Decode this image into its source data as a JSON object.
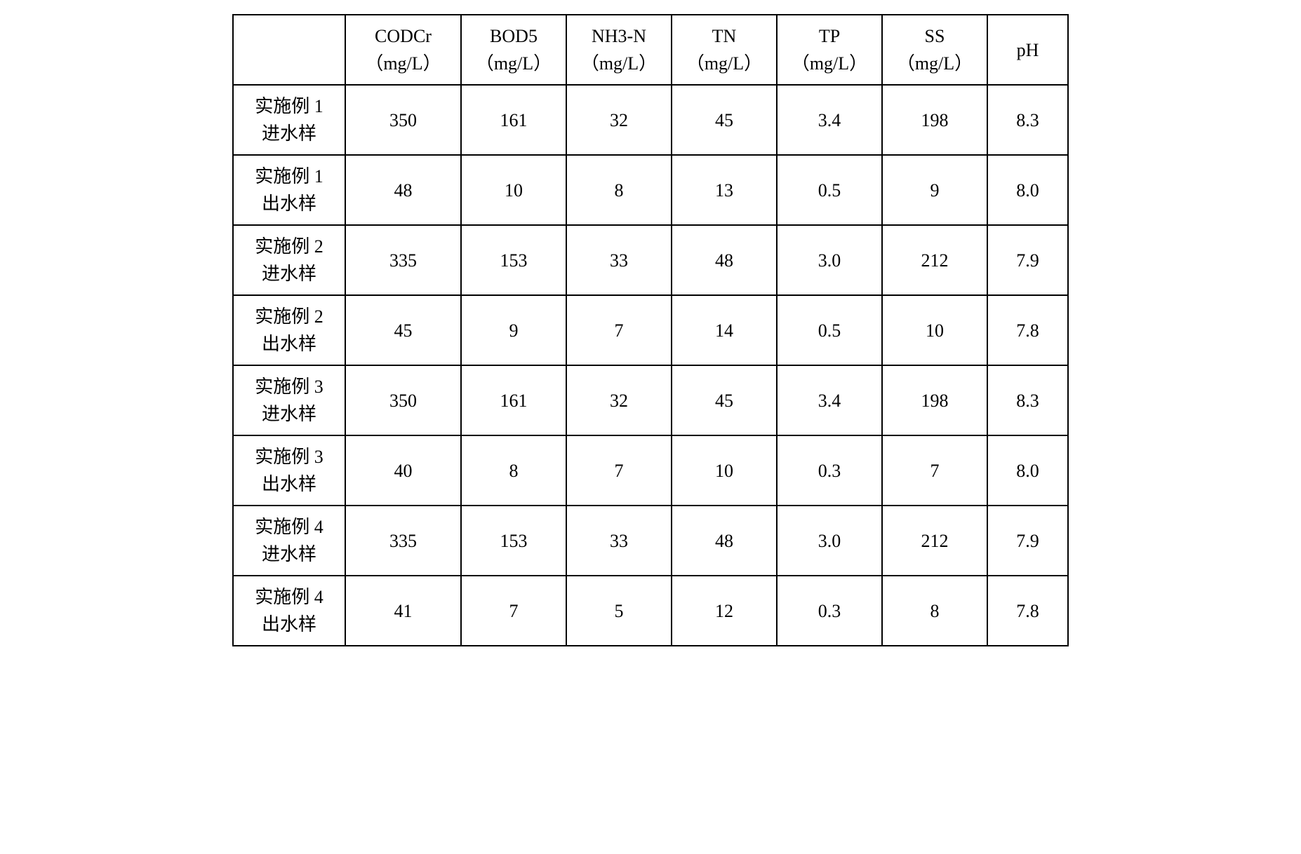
{
  "table": {
    "background_color": "#ffffff",
    "border_color": "#000000",
    "text_color": "#000000",
    "font_size": 26,
    "columns": [
      {
        "label_line1": "",
        "label_line2": ""
      },
      {
        "label_line1": "CODCr",
        "label_line2": "（mg/L）"
      },
      {
        "label_line1": "BOD5",
        "label_line2": "（mg/L）"
      },
      {
        "label_line1": "NH3-N",
        "label_line2": "（mg/L）"
      },
      {
        "label_line1": "TN",
        "label_line2": "（mg/L）"
      },
      {
        "label_line1": "TP",
        "label_line2": "（mg/L）"
      },
      {
        "label_line1": "SS",
        "label_line2": "（mg/L）"
      },
      {
        "label_line1": "pH",
        "label_line2": ""
      }
    ],
    "rows": [
      {
        "label_line1": "实施例 1",
        "label_line2": "进水样",
        "cells": [
          "350",
          "161",
          "32",
          "45",
          "3.4",
          "198",
          "8.3"
        ]
      },
      {
        "label_line1": "实施例 1",
        "label_line2": "出水样",
        "cells": [
          "48",
          "10",
          "8",
          "13",
          "0.5",
          "9",
          "8.0"
        ]
      },
      {
        "label_line1": "实施例 2",
        "label_line2": "进水样",
        "cells": [
          "335",
          "153",
          "33",
          "48",
          "3.0",
          "212",
          "7.9"
        ]
      },
      {
        "label_line1": "实施例 2",
        "label_line2": "出水样",
        "cells": [
          "45",
          "9",
          "7",
          "14",
          "0.5",
          "10",
          "7.8"
        ]
      },
      {
        "label_line1": "实施例 3",
        "label_line2": "进水样",
        "cells": [
          "350",
          "161",
          "32",
          "45",
          "3.4",
          "198",
          "8.3"
        ]
      },
      {
        "label_line1": "实施例 3",
        "label_line2": "出水样",
        "cells": [
          "40",
          "8",
          "7",
          "10",
          "0.3",
          "7",
          "8.0"
        ]
      },
      {
        "label_line1": "实施例 4",
        "label_line2": "进水样",
        "cells": [
          "335",
          "153",
          "33",
          "48",
          "3.0",
          "212",
          "7.9"
        ]
      },
      {
        "label_line1": "实施例 4",
        "label_line2": "出水样",
        "cells": [
          "41",
          "7",
          "5",
          "12",
          "0.3",
          "8",
          "7.8"
        ]
      }
    ]
  }
}
